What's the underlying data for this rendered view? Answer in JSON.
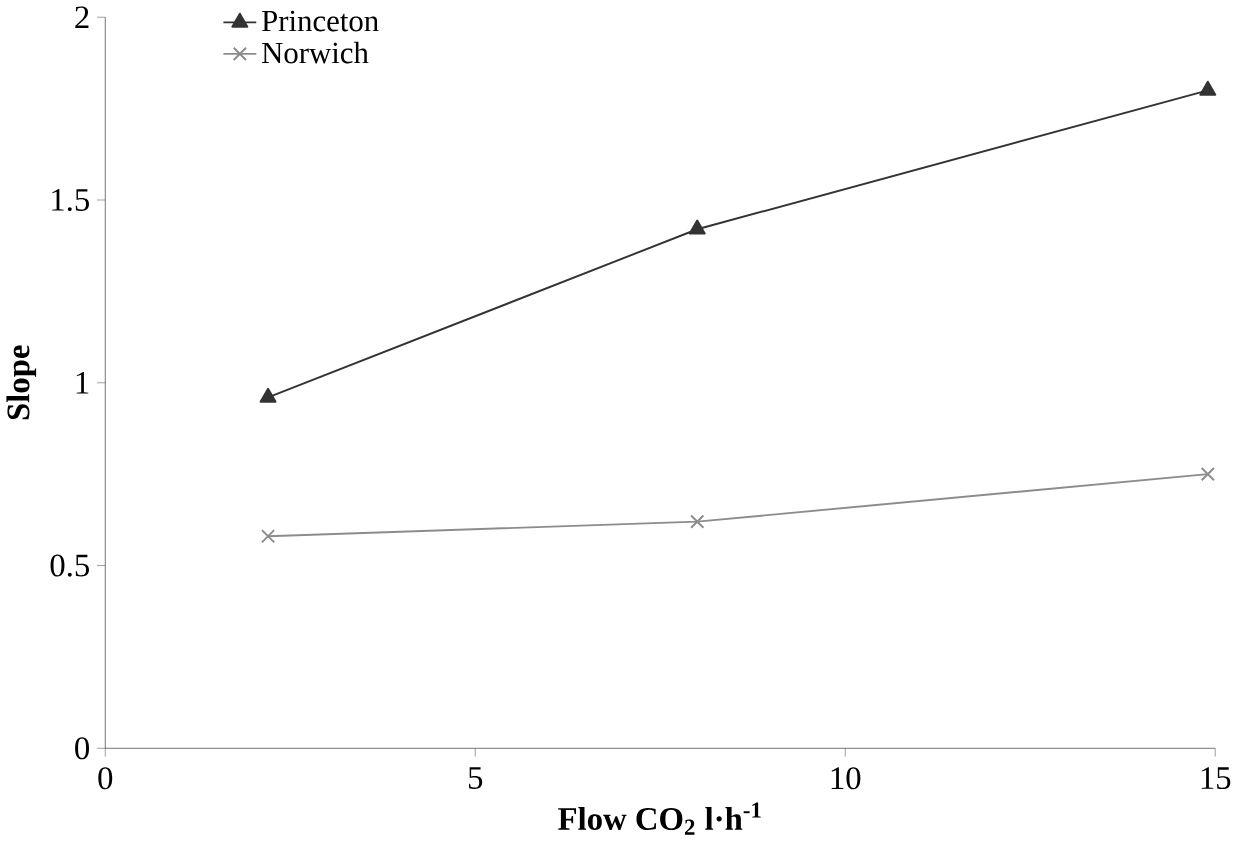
{
  "chart_data": {
    "type": "line",
    "xlabel": "Flow CO$_{2}$ l·h$^{-1}$",
    "ylabel": "Slope",
    "xlim": [
      0,
      15
    ],
    "xticks": [
      0,
      5,
      10,
      15
    ],
    "ylim": [
      0,
      2
    ],
    "yticks": [
      0,
      0.5,
      1,
      1.5,
      2
    ],
    "grid": false,
    "legend": "top left",
    "series": [
      {
        "name": "Princeton",
        "color": "#333333",
        "marker": "triangle",
        "x": [
          2.2,
          8,
          14.9
        ],
        "values": [
          0.96,
          1.42,
          1.8
        ]
      },
      {
        "name": "Norwich",
        "color": "#8c8c8c",
        "marker": "cross",
        "x": [
          2.2,
          8,
          14.9
        ],
        "values": [
          0.58,
          0.62,
          0.75
        ]
      }
    ]
  }
}
